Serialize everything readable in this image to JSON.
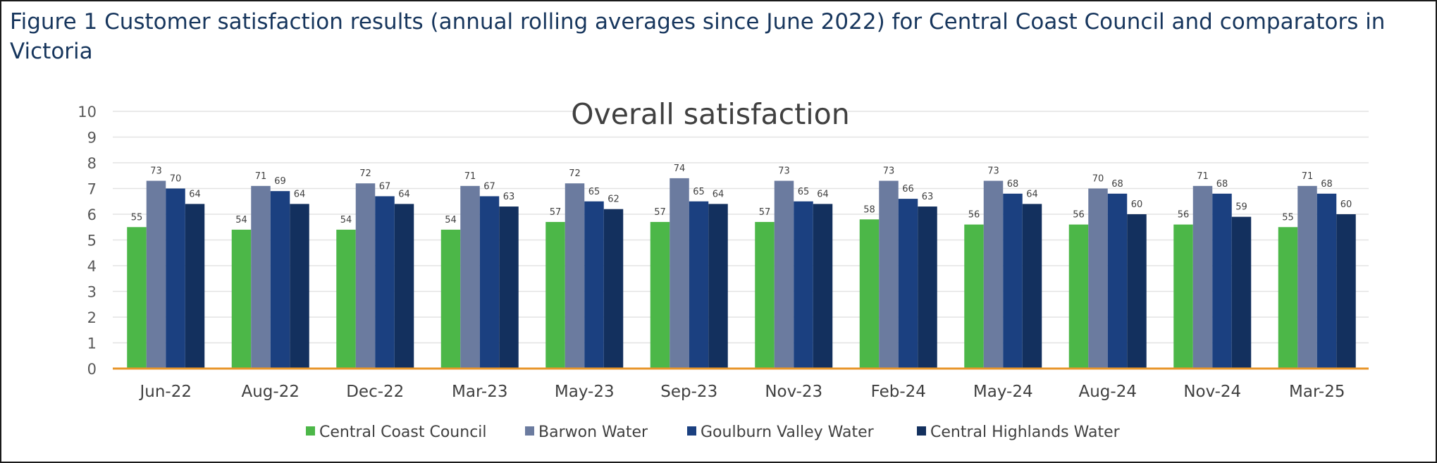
{
  "figure_caption": "Figure 1 Customer satisfaction results (annual rolling averages since June 2022) for Central Coast Council and comparators in Victoria",
  "chart_data": {
    "type": "bar",
    "title": "Overall satisfaction",
    "xlabel": "",
    "ylabel": "",
    "ylim": [
      0,
      10
    ],
    "yticks": [
      "0",
      "1",
      "2",
      "3",
      "4",
      "5",
      "6",
      "7",
      "8",
      "9",
      "10"
    ],
    "grid": true,
    "legend_position": "bottom",
    "categories": [
      "Jun-22",
      "Aug-22",
      "Dec-22",
      "Mar-23",
      "May-23",
      "Sep-23",
      "Nov-23",
      "Feb-24",
      "May-24",
      "Aug-24",
      "Nov-24",
      "Mar-25"
    ],
    "series": [
      {
        "name": "Central Coast Council",
        "color": "#4cb748",
        "values": [
          5.5,
          5.4,
          5.4,
          5.4,
          5.7,
          5.7,
          5.7,
          5.8,
          5.6,
          5.6,
          5.6,
          5.5
        ],
        "labels": [
          "55",
          "54",
          "54",
          "54",
          "57",
          "57",
          "57",
          "58",
          "56",
          "56",
          "56",
          "55"
        ]
      },
      {
        "name": "Barwon Water",
        "color": "#6b7b9f",
        "values": [
          7.3,
          7.1,
          7.2,
          7.1,
          7.2,
          7.4,
          7.3,
          7.3,
          7.3,
          7.0,
          7.1,
          7.1
        ],
        "labels": [
          "73",
          "71",
          "72",
          "71",
          "72",
          "74",
          "73",
          "73",
          "73",
          "70",
          "71",
          "71"
        ]
      },
      {
        "name": "Goulburn Valley Water",
        "color": "#1b4080",
        "values": [
          7.0,
          6.9,
          6.7,
          6.7,
          6.5,
          6.5,
          6.5,
          6.6,
          6.8,
          6.8,
          6.8,
          6.8
        ],
        "labels": [
          "70",
          "69",
          "67",
          "67",
          "65",
          "65",
          "65",
          "66",
          "68",
          "68",
          "68",
          "68"
        ]
      },
      {
        "name": "Central Highlands Water",
        "color": "#13305e",
        "values": [
          6.4,
          6.4,
          6.4,
          6.3,
          6.2,
          6.4,
          6.4,
          6.3,
          6.4,
          6.0,
          5.9,
          6.0
        ],
        "labels": [
          "64",
          "64",
          "64",
          "63",
          "62",
          "64",
          "64",
          "63",
          "64",
          "60",
          "59",
          "60"
        ]
      }
    ],
    "baseline_color": "#e8962a",
    "gridline_color": "#e3e3e3"
  }
}
